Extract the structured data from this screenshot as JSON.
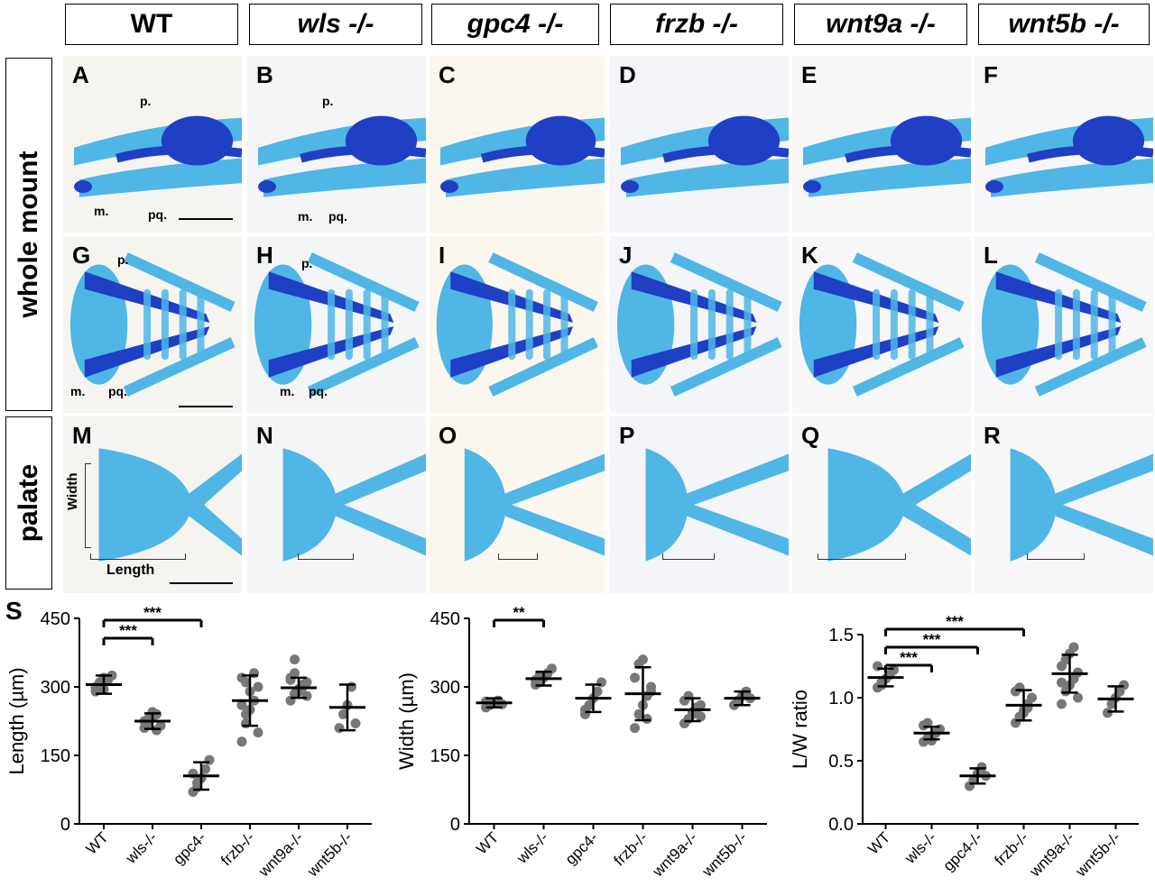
{
  "headers": {
    "wt": "WT",
    "wls": "wls -/-",
    "gpc4": "gpc4 -/-",
    "frzb": "frzb -/-",
    "wnt9a": "wnt9a -/-",
    "wnt5b": "wnt5b -/-"
  },
  "rows": {
    "whole_mount": "whole mount",
    "palate": "palate"
  },
  "panels": [
    "A",
    "B",
    "C",
    "D",
    "E",
    "F",
    "G",
    "H",
    "I",
    "J",
    "K",
    "L",
    "M",
    "N",
    "O",
    "P",
    "Q",
    "R"
  ],
  "annotations": {
    "p": "p.",
    "m": "m.",
    "pq": "pq.",
    "width": "Width",
    "length": "Length"
  },
  "colors": {
    "cartilage_light": "#4fb6e6",
    "cartilage_dark": "#1f3fc4",
    "background_tint": "#f4f7fa"
  },
  "s_label": "S",
  "chart_data": [
    {
      "type": "scatter",
      "ylabel": "Length (µm)",
      "ylim": [
        0,
        450
      ],
      "yticks": [
        "0",
        "150",
        "300",
        "450"
      ],
      "categories": [
        "WT",
        "wls-/-",
        "gpc4-",
        "frzb-/-",
        "wnt9a-/-",
        "wnt5b-/-"
      ],
      "mean": [
        305,
        225,
        105,
        270,
        298,
        255
      ],
      "sd": [
        20,
        17,
        30,
        55,
        22,
        50
      ],
      "points": [
        [
          300,
          310,
          295,
          315,
          325,
          290,
          305,
          320
        ],
        [
          210,
          220,
          235,
          240,
          215,
          225,
          230,
          245,
          205
        ],
        [
          70,
          90,
          100,
          120,
          140,
          110,
          80
        ],
        [
          180,
          220,
          250,
          270,
          300,
          320,
          240,
          290,
          330,
          200,
          260,
          310
        ],
        [
          270,
          285,
          295,
          300,
          310,
          320,
          330,
          290,
          305,
          280,
          315,
          360
        ],
        [
          210,
          240,
          260,
          300,
          220
        ]
      ],
      "significance": [
        {
          "pair": [
            "WT",
            "wls-/-"
          ],
          "label": "***"
        },
        {
          "pair": [
            "WT",
            "gpc4-"
          ],
          "label": "***"
        }
      ]
    },
    {
      "type": "scatter",
      "ylabel": "Width (µm)",
      "ylim": [
        0,
        450
      ],
      "yticks": [
        "0",
        "150",
        "300",
        "450"
      ],
      "categories": [
        "WT",
        "wls-/-",
        "gpc4-",
        "frzb-/-",
        "wnt9a-/-",
        "wnt5b-/-"
      ],
      "mean": [
        265,
        318,
        275,
        285,
        250,
        275
      ],
      "sd": [
        10,
        15,
        30,
        58,
        25,
        15
      ],
      "points": [
        [
          255,
          260,
          265,
          270,
          262,
          268
        ],
        [
          305,
          310,
          320,
          330,
          340,
          315,
          325
        ],
        [
          240,
          260,
          275,
          290,
          310,
          250
        ],
        [
          210,
          240,
          260,
          280,
          300,
          320,
          350,
          360,
          230,
          290
        ],
        [
          220,
          230,
          240,
          250,
          260,
          270,
          280,
          245,
          255,
          235
        ],
        [
          260,
          270,
          280,
          290,
          275
        ]
      ],
      "significance": [
        {
          "pair": [
            "WT",
            "wls-/-"
          ],
          "label": "**"
        }
      ]
    },
    {
      "type": "scatter",
      "ylabel": "L/W ratio",
      "ylim": [
        0,
        1.5
      ],
      "yticks": [
        "0.0",
        "0.5",
        "1.0",
        "1.5"
      ],
      "categories": [
        "WT",
        "wls-/-",
        "gpc4-/-",
        "frzb-/-",
        "wnt9a-/-",
        "wnt5b-/-"
      ],
      "mean": [
        1.16,
        0.72,
        0.38,
        0.94,
        1.19,
        0.99
      ],
      "sd": [
        0.07,
        0.05,
        0.06,
        0.12,
        0.15,
        0.1
      ],
      "points": [
        [
          1.08,
          1.12,
          1.15,
          1.18,
          1.22,
          1.25,
          1.1
        ],
        [
          0.65,
          0.68,
          0.7,
          0.72,
          0.75,
          0.78,
          0.8,
          0.66
        ],
        [
          0.3,
          0.35,
          0.4,
          0.45,
          0.38
        ],
        [
          0.8,
          0.85,
          0.9,
          0.95,
          1.0,
          1.05,
          1.08,
          0.88,
          0.92
        ],
        [
          0.95,
          1.05,
          1.1,
          1.15,
          1.2,
          1.25,
          1.3,
          1.35,
          1.4,
          1.0,
          1.12
        ],
        [
          0.88,
          0.95,
          1.0,
          1.05,
          1.1
        ]
      ],
      "significance": [
        {
          "pair": [
            "WT",
            "wls-/-"
          ],
          "label": "***"
        },
        {
          "pair": [
            "WT",
            "gpc4-/-"
          ],
          "label": "***"
        },
        {
          "pair": [
            "WT",
            "frzb-/-"
          ],
          "label": "***"
        }
      ]
    }
  ]
}
